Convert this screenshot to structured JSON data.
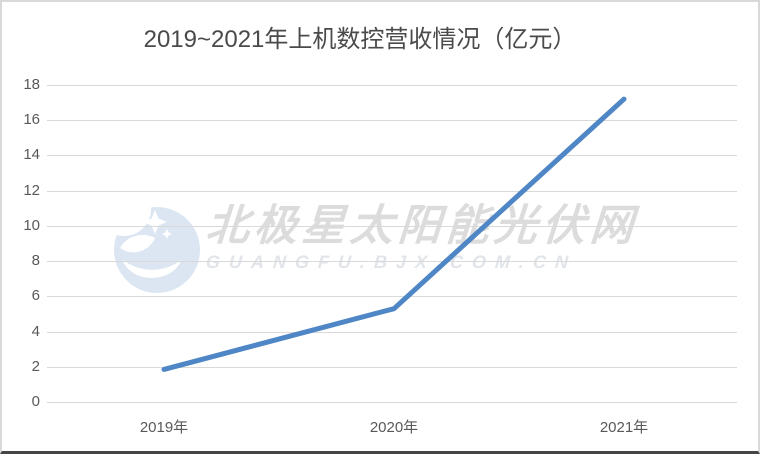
{
  "window": {
    "background": "#ffffff",
    "frame_border_color": "#d9d9d9",
    "bottom_edge_color": "#454545"
  },
  "chart_data": {
    "type": "line",
    "title": "2019~2021年上机数控营收情况（亿元）",
    "categories": [
      "2019年",
      "2020年",
      "2021年"
    ],
    "values": [
      1.85,
      5.3,
      17.2
    ],
    "xlabel": "",
    "ylabel": "",
    "ylim": [
      0,
      18
    ],
    "yticks": [
      0,
      2,
      4,
      6,
      8,
      10,
      12,
      14,
      16,
      18
    ],
    "grid": true,
    "legend": "none",
    "line_color": "#4f86c5",
    "label_color": "#595959",
    "grid_color": "#d9d9d9",
    "title_color": "#4a4a4a"
  },
  "watermark": {
    "logo_icon": "bjx-star-logo",
    "text": "北极星太阳能光伏网",
    "subtext": "GUANGFU.BJX.COM.CN",
    "text_color": "#dcdcdc",
    "subtext_color": "#e1e5ea",
    "logo_color": "#dce6f3"
  }
}
